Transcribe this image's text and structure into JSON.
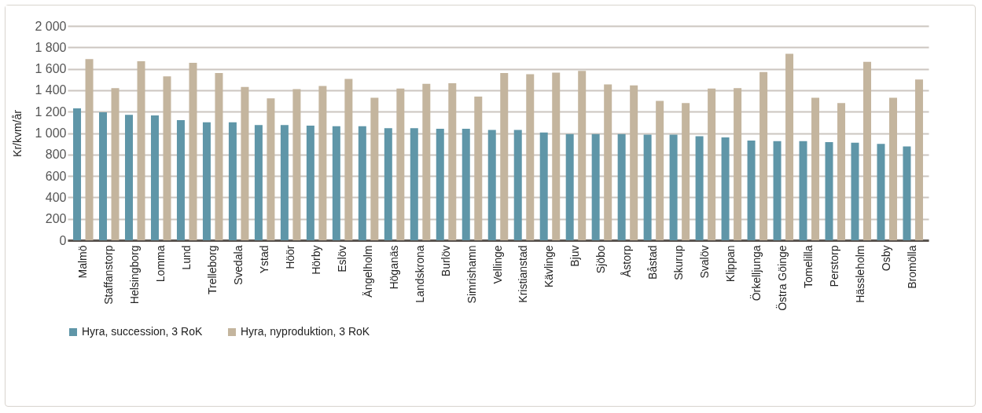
{
  "chart_data": {
    "type": "bar",
    "ylabel": "Kr/kvm/år",
    "categories": [
      "Malmö",
      "Staffanstorp",
      "Helsingborg",
      "Lomma",
      "Lund",
      "Trelleborg",
      "Svedala",
      "Ystad",
      "Höör",
      "Hörby",
      "Eslöv",
      "Ängelholm",
      "Höganäs",
      "Landskrona",
      "Burlöv",
      "Simrishamn",
      "Vellinge",
      "Kristianstad",
      "Kävlinge",
      "Bjuv",
      "Sjöbo",
      "Åstorp",
      "Båstad",
      "Skurup",
      "Svalöv",
      "Klippan",
      "Örkelljunga",
      "Östra Göinge",
      "Tomelilla",
      "Perstorp",
      "Hässleholm",
      "Osby",
      "Bromölla"
    ],
    "series": [
      {
        "name": "Hyra, succession, 3 RoK",
        "color": "#5f96a8",
        "values": [
          1230,
          1195,
          1170,
          1165,
          1120,
          1100,
          1100,
          1075,
          1075,
          1070,
          1065,
          1065,
          1045,
          1045,
          1040,
          1040,
          1030,
          1030,
          1005,
          990,
          990,
          990,
          985,
          985,
          970,
          960,
          930,
          925,
          925,
          915,
          910,
          900,
          875
        ]
      },
      {
        "name": "Hyra, nyproduktion, 3 RoK",
        "color": "#c4b59e",
        "values": [
          1690,
          1420,
          1670,
          1530,
          1655,
          1560,
          1430,
          1325,
          1410,
          1440,
          1505,
          1330,
          1415,
          1460,
          1465,
          1340,
          1560,
          1550,
          1565,
          1580,
          1455,
          1445,
          1300,
          1280,
          1415,
          1420,
          1570,
          1740,
          1330,
          1280,
          1665,
          1330,
          1500
        ]
      }
    ],
    "ylim": [
      0,
      2000
    ],
    "yticks": [
      0,
      200,
      400,
      600,
      800,
      {
        "value": 1000,
        "label": "1 000"
      },
      {
        "value": 1200,
        "label": "1 200"
      },
      {
        "value": 1400,
        "label": "1 400"
      },
      {
        "value": 1600,
        "label": "1 600"
      },
      {
        "value": 1800,
        "label": "1 800"
      },
      {
        "value": 2000,
        "label": "2 000"
      }
    ],
    "grid": "y",
    "legend": "bottom"
  }
}
